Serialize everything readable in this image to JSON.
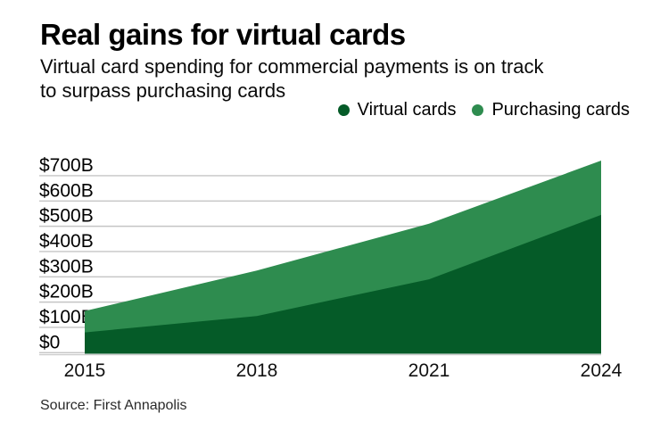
{
  "header": {
    "title": "Real gains for virtual cards",
    "subtitle_line1": "Virtual card spending for commercial payments is on track",
    "subtitle_line2": "to surpass purchasing cards"
  },
  "legend": {
    "items": [
      {
        "label": "Virtual cards",
        "color": "#055b28"
      },
      {
        "label": "Purchasing cards",
        "color": "#2e8c4f"
      }
    ]
  },
  "source": "Source: First Annapolis",
  "chart_data": {
    "type": "area",
    "stacked": true,
    "title": "Real gains for virtual cards",
    "subtitle": "Virtual card spending for commercial payments is on track to surpass purchasing cards",
    "x": [
      2015,
      2018,
      2021,
      2024
    ],
    "x_tick_labels": [
      "2015",
      "2018",
      "2021",
      "2024"
    ],
    "series": [
      {
        "name": "Virtual cards",
        "color": "#055b28",
        "values": [
          80,
          145,
          290,
          545
        ]
      },
      {
        "name": "Purchasing cards",
        "color": "#2e8c4f",
        "values": [
          85,
          180,
          220,
          215
        ]
      }
    ],
    "stacked_totals": [
      165,
      325,
      510,
      760
    ],
    "y_ticks": [
      {
        "label": "$0",
        "value": 0
      },
      {
        "label": "$100B",
        "value": 100
      },
      {
        "label": "$200B",
        "value": 200
      },
      {
        "label": "$300B",
        "value": 300
      },
      {
        "label": "$400B",
        "value": 400
      },
      {
        "label": "$500B",
        "value": 500
      },
      {
        "label": "$600B",
        "value": 600
      },
      {
        "label": "$700B",
        "value": 700
      }
    ],
    "ylim": [
      0,
      830
    ],
    "xlabel": "",
    "ylabel": "",
    "grid": true,
    "gridline_color": "#c5c5c5",
    "axis_line_color": "#cccccc",
    "legend_position": "top-right",
    "source": "Source: First Annapolis"
  }
}
